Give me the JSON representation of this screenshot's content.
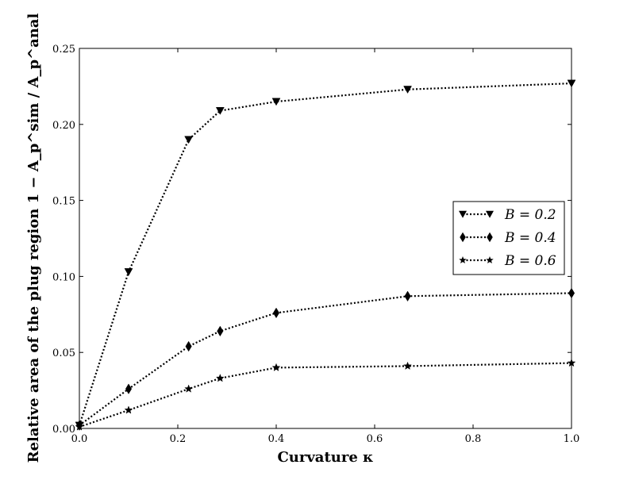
{
  "chart_data": {
    "type": "line",
    "xlabel": "Curvature κ",
    "ylabel": "Relative area of the plug region 1 − A_p^sim / A_p^anal",
    "xlim": [
      0,
      1.0
    ],
    "ylim": [
      0,
      0.25
    ],
    "xticks": [
      "0.0",
      "0.2",
      "0.4",
      "0.6",
      "0.8",
      "1.0"
    ],
    "yticks": [
      "0.00",
      "0.05",
      "0.10",
      "0.15",
      "0.20",
      "0.25"
    ],
    "grid": false,
    "legend_position": "right",
    "line_style": "dotted",
    "line_color": "#000000",
    "series": [
      {
        "name": "B = 0.2",
        "marker": "triangle-down",
        "x": [
          0.0,
          0.1,
          0.222,
          0.286,
          0.4,
          0.667,
          1.0
        ],
        "y": [
          0.002,
          0.103,
          0.19,
          0.209,
          0.215,
          0.223,
          0.227
        ]
      },
      {
        "name": "B = 0.4",
        "marker": "diamond",
        "x": [
          0.0,
          0.1,
          0.222,
          0.286,
          0.4,
          0.667,
          1.0
        ],
        "y": [
          0.002,
          0.026,
          0.054,
          0.064,
          0.076,
          0.087,
          0.089
        ]
      },
      {
        "name": "B = 0.6",
        "marker": "star",
        "x": [
          0.0,
          0.1,
          0.222,
          0.286,
          0.4,
          0.667,
          1.0
        ],
        "y": [
          0.001,
          0.012,
          0.026,
          0.033,
          0.04,
          0.041,
          0.043
        ]
      }
    ]
  }
}
